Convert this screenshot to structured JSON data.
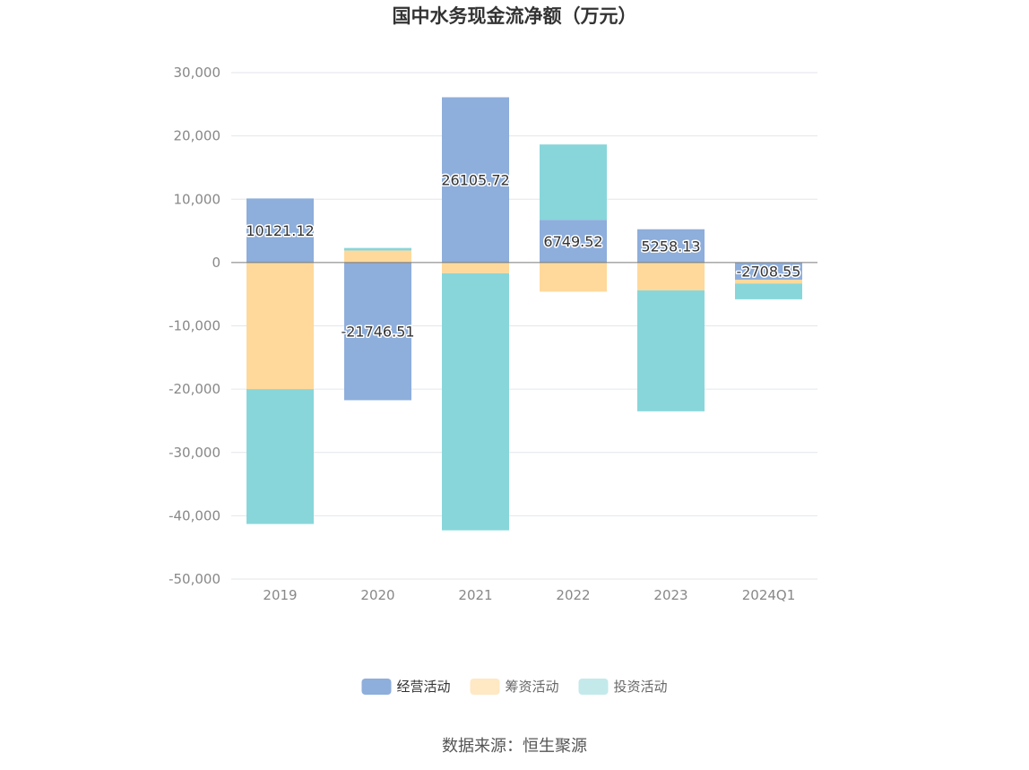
{
  "chart_data": {
    "type": "bar",
    "stacked": true,
    "title": "国中水务现金流净额（万元）",
    "xlabel": "",
    "ylabel": "",
    "categories": [
      "2019",
      "2020",
      "2021",
      "2022",
      "2023",
      "2024Q1"
    ],
    "ylim": [
      -50000,
      30000
    ],
    "yticks": [
      30000,
      20000,
      10000,
      0,
      -10000,
      -20000,
      -30000,
      -40000,
      -50000
    ],
    "ytick_labels": [
      "30,000",
      "20,000",
      "10,000",
      "0",
      "-10,000",
      "-20,000",
      "-30,000",
      "-40,000",
      "-50,000"
    ],
    "grid": true,
    "legend_position": "bottom",
    "series": [
      {
        "name": "经营活动",
        "color": "#8eaedb",
        "values": [
          10121.12,
          -21746.51,
          26105.72,
          6749.52,
          5258.13,
          -2708.55
        ],
        "labels": [
          "10121.12",
          "-21746.51",
          "26105.72",
          "6749.52",
          "5258.13",
          "-2708.55"
        ]
      },
      {
        "name": "筹资活动",
        "color": "#ffd99b",
        "values": [
          -20000,
          1900,
          -1700,
          -4600,
          -4400,
          -600
        ]
      },
      {
        "name": "投资活动",
        "color": "#88d6da",
        "values": [
          -21300,
          400,
          -40600,
          11900,
          -19100,
          -2500
        ]
      }
    ],
    "legend_colors": [
      "#8eaedb",
      "#ffe8c4",
      "#c3e9eb"
    ]
  },
  "source_text": "数据来源：恒生聚源"
}
